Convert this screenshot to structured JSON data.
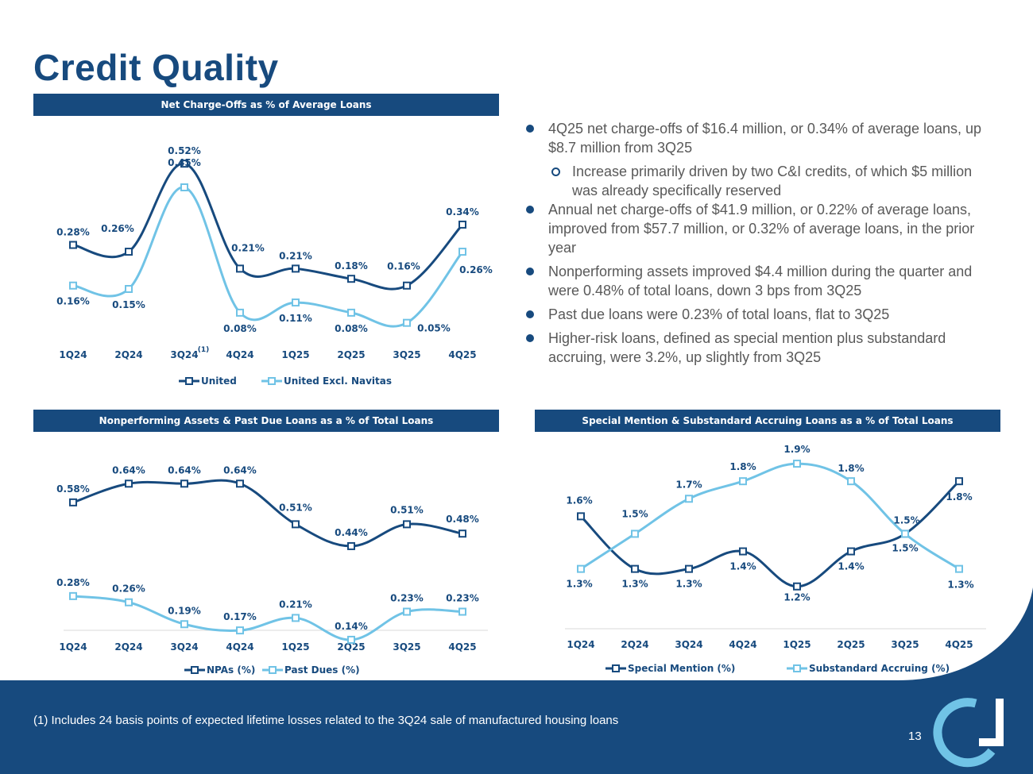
{
  "page": {
    "title": "Credit Quality",
    "footnote": "(1) Includes 24 basis points of expected lifetime losses related to the 3Q24 sale of manufactured housing loans",
    "page_number": "13",
    "logo": "united-community-logo-icon"
  },
  "colors": {
    "navy": "#174a7e",
    "light_blue": "#70c3e6",
    "white": "#ffffff"
  },
  "bullets": [
    {
      "level": 1,
      "text": "4Q25 net charge-offs of $16.4 million, or 0.34% of average loans, up $8.7 million from 3Q25"
    },
    {
      "level": 2,
      "text": "Increase primarily driven by two C&I credits, of which $5 million was already specifically reserved"
    },
    {
      "level": 1,
      "text": "Annual net charge-offs of $41.9 million, or 0.22% of average loans, improved from $57.7 million, or 0.32% of average loans, in the prior year"
    },
    {
      "level": 1,
      "text": "Nonperforming assets improved $4.4 million during the quarter and were 0.48% of total loans, down 3 bps from 3Q25"
    },
    {
      "level": 1,
      "text": "Past due loans were 0.23% of total loans, flat to 3Q25"
    },
    {
      "level": 1,
      "text": "Higher-risk loans, defined as special mention plus substandard accruing, were 3.2%, up slightly from 3Q25"
    }
  ],
  "chart_data": [
    {
      "type": "line",
      "title": "Net Charge-Offs as % of Average Loans",
      "categories": [
        "1Q24",
        "2Q24",
        "3Q24",
        "4Q24",
        "1Q25",
        "2Q25",
        "3Q25",
        "4Q25"
      ],
      "category_footnote": {
        "category": "3Q24",
        "mark": "(1)"
      },
      "ylim": [
        0,
        0.6
      ],
      "series": [
        {
          "name": "United",
          "values": [
            0.28,
            0.26,
            0.52,
            0.21,
            0.21,
            0.18,
            0.16,
            0.34
          ],
          "labels": [
            "0.28%",
            "0.26%",
            "0.52%",
            "0.21%",
            "0.21%",
            "0.18%",
            "0.16%",
            "0.34%"
          ],
          "color": "#174a7e"
        },
        {
          "name": "United Excl. Navitas",
          "values": [
            0.16,
            0.15,
            0.45,
            0.08,
            0.11,
            0.08,
            0.05,
            0.26
          ],
          "labels": [
            "0.16%",
            "0.15%",
            "0.45%",
            "0.08%",
            "0.11%",
            "0.08%",
            "0.05%",
            "0.26%"
          ],
          "color": "#70c3e6"
        }
      ],
      "legend": "bottom"
    },
    {
      "type": "line",
      "title": "Nonperforming Assets & Past Due Loans as a % of Total Loans",
      "categories": [
        "1Q24",
        "2Q24",
        "3Q24",
        "4Q24",
        "1Q25",
        "2Q25",
        "3Q25",
        "4Q25"
      ],
      "ylim": [
        0,
        0.75
      ],
      "series": [
        {
          "name": "NPAs (%)",
          "values": [
            0.58,
            0.64,
            0.64,
            0.64,
            0.51,
            0.44,
            0.51,
            0.48
          ],
          "labels": [
            "0.58%",
            "0.64%",
            "0.64%",
            "0.64%",
            "0.51%",
            "0.44%",
            "0.51%",
            "0.48%"
          ],
          "color": "#174a7e"
        },
        {
          "name": "Past Dues (%)",
          "values": [
            0.28,
            0.26,
            0.19,
            0.17,
            0.21,
            0.14,
            0.23,
            0.23
          ],
          "labels": [
            "0.28%",
            "0.26%",
            "0.19%",
            "0.17%",
            "0.21%",
            "0.14%",
            "0.23%",
            "0.23%"
          ],
          "color": "#70c3e6"
        }
      ],
      "legend": "bottom"
    },
    {
      "type": "line",
      "title": "Special Mention & Substandard Accruing Loans as a % of Total Loans",
      "categories": [
        "1Q24",
        "2Q24",
        "3Q24",
        "4Q24",
        "1Q25",
        "2Q25",
        "3Q25",
        "4Q25"
      ],
      "ylim": [
        0.9,
        2.0
      ],
      "series": [
        {
          "name": "Special Mention (%)",
          "values": [
            1.6,
            1.3,
            1.3,
            1.4,
            1.2,
            1.4,
            1.5,
            1.8
          ],
          "labels": [
            "1.6%",
            "1.3%",
            "1.3%",
            "1.4%",
            "1.2%",
            "1.4%",
            "1.5%",
            "1.8%"
          ],
          "color": "#174a7e"
        },
        {
          "name": "Substandard Accruing (%)",
          "values": [
            1.3,
            1.5,
            1.7,
            1.8,
            1.9,
            1.8,
            1.5,
            1.3
          ],
          "labels": [
            "1.3%",
            "1.5%",
            "1.7%",
            "1.8%",
            "1.9%",
            "1.8%",
            "1.5%",
            "1.3%"
          ],
          "color": "#70c3e6"
        }
      ],
      "legend": "bottom"
    }
  ]
}
